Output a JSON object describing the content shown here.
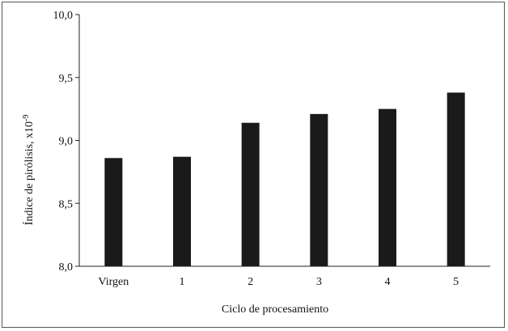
{
  "chart_data": {
    "type": "bar",
    "title": "",
    "xlabel": "Ciclo de procesamiento",
    "ylabel": "Índice de pirólisis, x10",
    "ylabel_exponent": "-9",
    "categories": [
      "Virgen",
      "1",
      "2",
      "3",
      "4",
      "5"
    ],
    "values": [
      8.86,
      8.87,
      9.14,
      9.21,
      9.25,
      9.38
    ],
    "ylim": [
      8.0,
      10.0
    ],
    "yticks": [
      8.0,
      8.5,
      9.0,
      9.5,
      10.0
    ],
    "ytick_labels": [
      "8,0",
      "8,5",
      "9,0",
      "9,5",
      "10,0"
    ],
    "grid": false,
    "legend": "none",
    "bar_color": "#1a1a1a"
  }
}
